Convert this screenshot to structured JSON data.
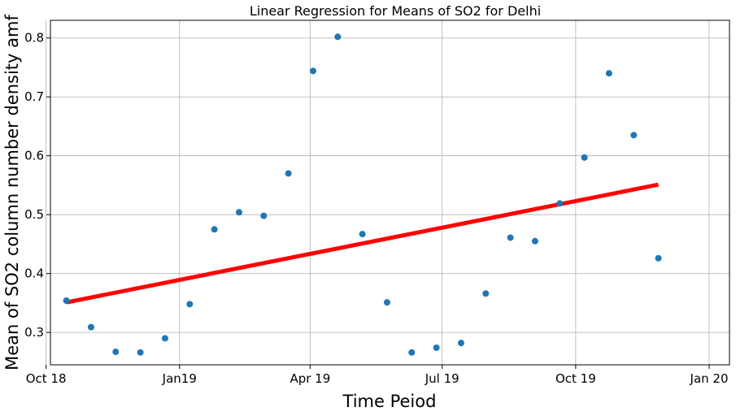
{
  "chart_data": {
    "type": "scatter",
    "title": "Linear Regression for Means of SO2 for Delhi",
    "xlabel": "Time Peiod",
    "ylabel": "Mean of SO2 column number density amf",
    "xlim": [
      "2018-10-04",
      "2020-01-15"
    ],
    "ylim": [
      0.245,
      0.83
    ],
    "x_ticks": [
      {
        "date": "2018-10-01",
        "label": "Oct 18"
      },
      {
        "date": "2019-01-01",
        "label": "Jan19"
      },
      {
        "date": "2019-04-01",
        "label": "Apr 19"
      },
      {
        "date": "2019-07-01",
        "label": "Jul 19"
      },
      {
        "date": "2019-10-01",
        "label": "Oct 19"
      },
      {
        "date": "2020-01-01",
        "label": "Jan 20"
      }
    ],
    "y_ticks": [
      0.3,
      0.4,
      0.5,
      0.6,
      0.7,
      0.8
    ],
    "grid": true,
    "series": [
      {
        "type": "scatter",
        "color": "#1f77b4",
        "points": [
          {
            "x": "2018-10-15",
            "y": 0.354
          },
          {
            "x": "2018-11-01",
            "y": 0.309
          },
          {
            "x": "2018-11-18",
            "y": 0.267
          },
          {
            "x": "2018-12-05",
            "y": 0.266
          },
          {
            "x": "2018-12-22",
            "y": 0.29
          },
          {
            "x": "2019-01-08",
            "y": 0.348
          },
          {
            "x": "2019-01-25",
            "y": 0.475
          },
          {
            "x": "2019-02-11",
            "y": 0.504
          },
          {
            "x": "2019-02-28",
            "y": 0.498
          },
          {
            "x": "2019-03-17",
            "y": 0.57
          },
          {
            "x": "2019-04-03",
            "y": 0.744
          },
          {
            "x": "2019-04-20",
            "y": 0.802
          },
          {
            "x": "2019-05-07",
            "y": 0.467
          },
          {
            "x": "2019-05-24",
            "y": 0.351
          },
          {
            "x": "2019-06-10",
            "y": 0.266
          },
          {
            "x": "2019-06-27",
            "y": 0.274
          },
          {
            "x": "2019-07-14",
            "y": 0.282
          },
          {
            "x": "2019-07-31",
            "y": 0.366
          },
          {
            "x": "2019-08-17",
            "y": 0.461
          },
          {
            "x": "2019-09-03",
            "y": 0.455
          },
          {
            "x": "2019-09-20",
            "y": 0.519
          },
          {
            "x": "2019-10-07",
            "y": 0.597
          },
          {
            "x": "2019-10-24",
            "y": 0.74
          },
          {
            "x": "2019-11-10",
            "y": 0.635
          },
          {
            "x": "2019-11-27",
            "y": 0.426
          }
        ]
      },
      {
        "type": "line",
        "color": "#ff0000",
        "points": [
          {
            "x": "2018-10-15",
            "y": 0.351
          },
          {
            "x": "2019-11-27",
            "y": 0.551
          }
        ]
      }
    ]
  }
}
